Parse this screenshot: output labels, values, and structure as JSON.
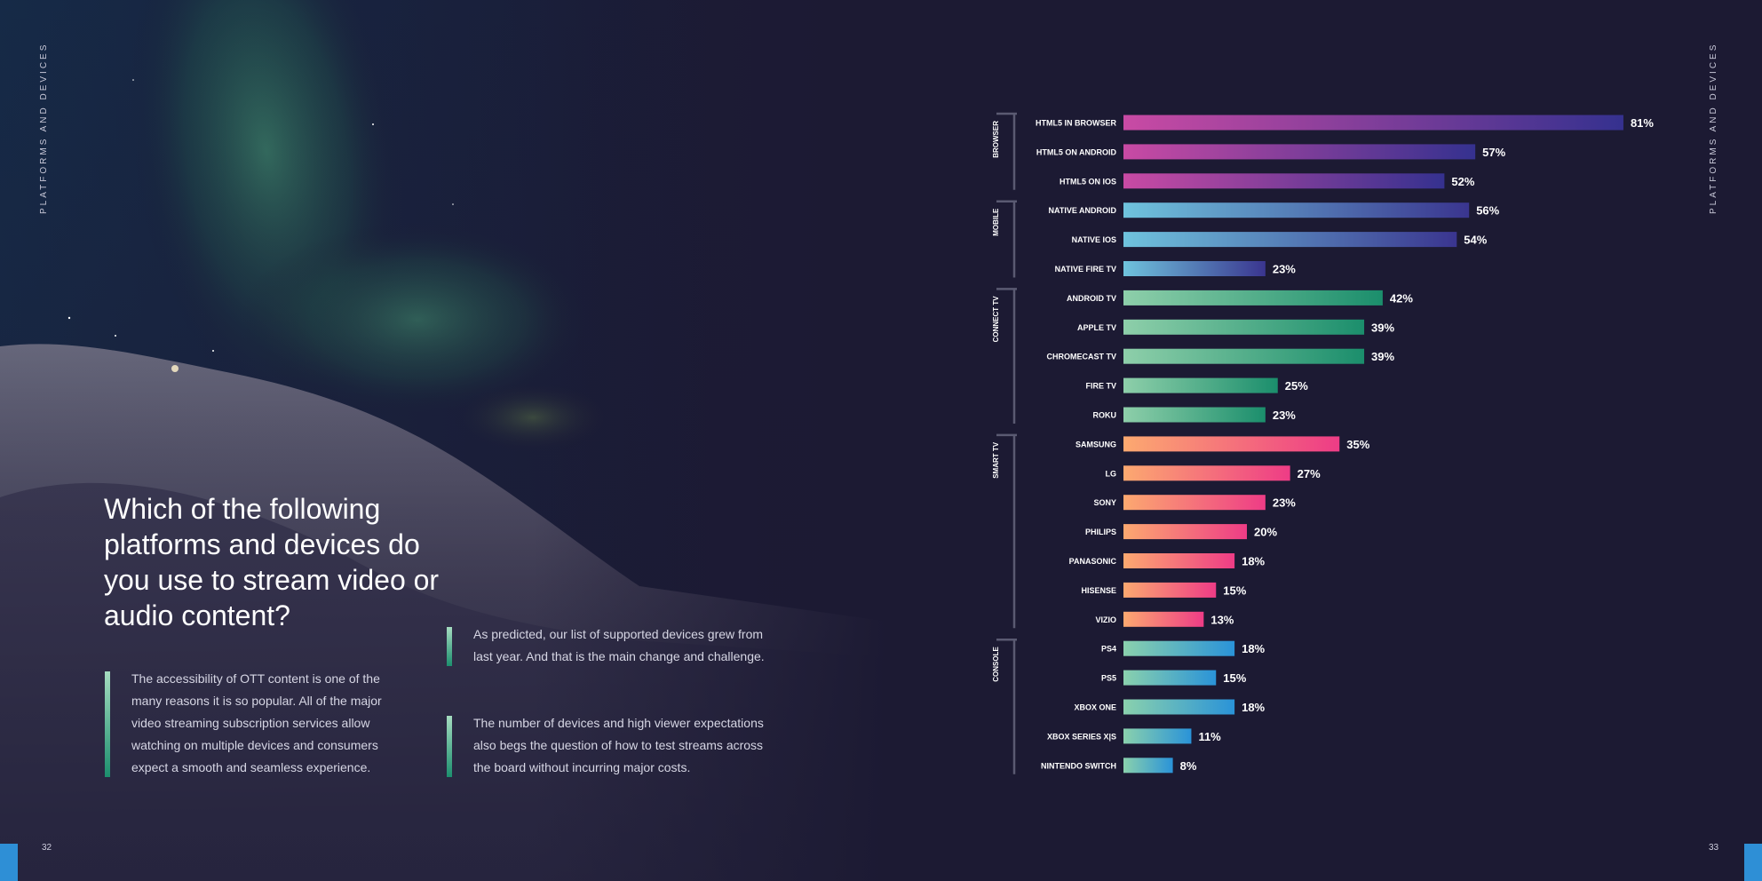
{
  "page": {
    "side_label_left": "PLATFORMS AND DEVICES",
    "side_label_right": "PLATFORMS AND DEVICES",
    "page_num_left": "32",
    "page_num_right": "33",
    "headline": "Which of the following platforms and devices do you use to stream video or audio content?",
    "paragraphs": [
      "The accessibility of OTT content is one of the many reasons it is so popular. All of the major video streaming subscription services allow watching on multiple devices and consumers expect a smooth and seamless experience.",
      "As predicted, our list of supported devices grew from last year. And that is the main change and challenge.",
      "The number of devices and high viewer expectations also begs the question of how to test streams across the board without incurring major costs."
    ]
  },
  "colors": {
    "background": "#1c1a33",
    "accent_blue": "#2e8fd6",
    "bracket": "#5a5a72"
  },
  "chart_data": {
    "type": "bar",
    "orientation": "horizontal",
    "xlim": [
      0,
      100
    ],
    "value_suffix": "%",
    "groups": [
      {
        "name": "BROWSER",
        "gradient": [
          "#c94aa4",
          "#35318f"
        ],
        "categories": [
          "HTML5 IN BROWSER",
          "HTML5 ON ANDROID",
          "HTML5 ON IOS"
        ],
        "values": [
          81,
          57,
          52
        ]
      },
      {
        "name": "MOBILE",
        "gradient": [
          "#6fc3dd",
          "#3a358f"
        ],
        "categories": [
          "NATIVE ANDROID",
          "NATIVE IOS",
          "NATIVE FIRE TV"
        ],
        "values": [
          56,
          54,
          23
        ]
      },
      {
        "name": "CONNECT TV",
        "gradient": [
          "#8ecfaa",
          "#1b8e6c"
        ],
        "categories": [
          "ANDROID TV",
          "APPLE TV",
          "CHROMECAST TV",
          "FIRE TV",
          "ROKU"
        ],
        "values": [
          42,
          39,
          39,
          25,
          23
        ]
      },
      {
        "name": "SMART TV",
        "gradient": [
          "#fca970",
          "#ee3c86"
        ],
        "categories": [
          "SAMSUNG",
          "LG",
          "SONY",
          "PHILIPS",
          "PANASONIC",
          "HISENSE",
          "VIZIO"
        ],
        "values": [
          35,
          27,
          23,
          20,
          18,
          15,
          13
        ]
      },
      {
        "name": "CONSOLE",
        "gradient": [
          "#8ad1ad",
          "#2a93d8"
        ],
        "categories": [
          "PS4",
          "PS5",
          "XBOX ONE",
          "XBOX SERIES X|S",
          "NINTENDO SWITCH"
        ],
        "values": [
          18,
          15,
          18,
          11,
          8
        ]
      }
    ]
  }
}
